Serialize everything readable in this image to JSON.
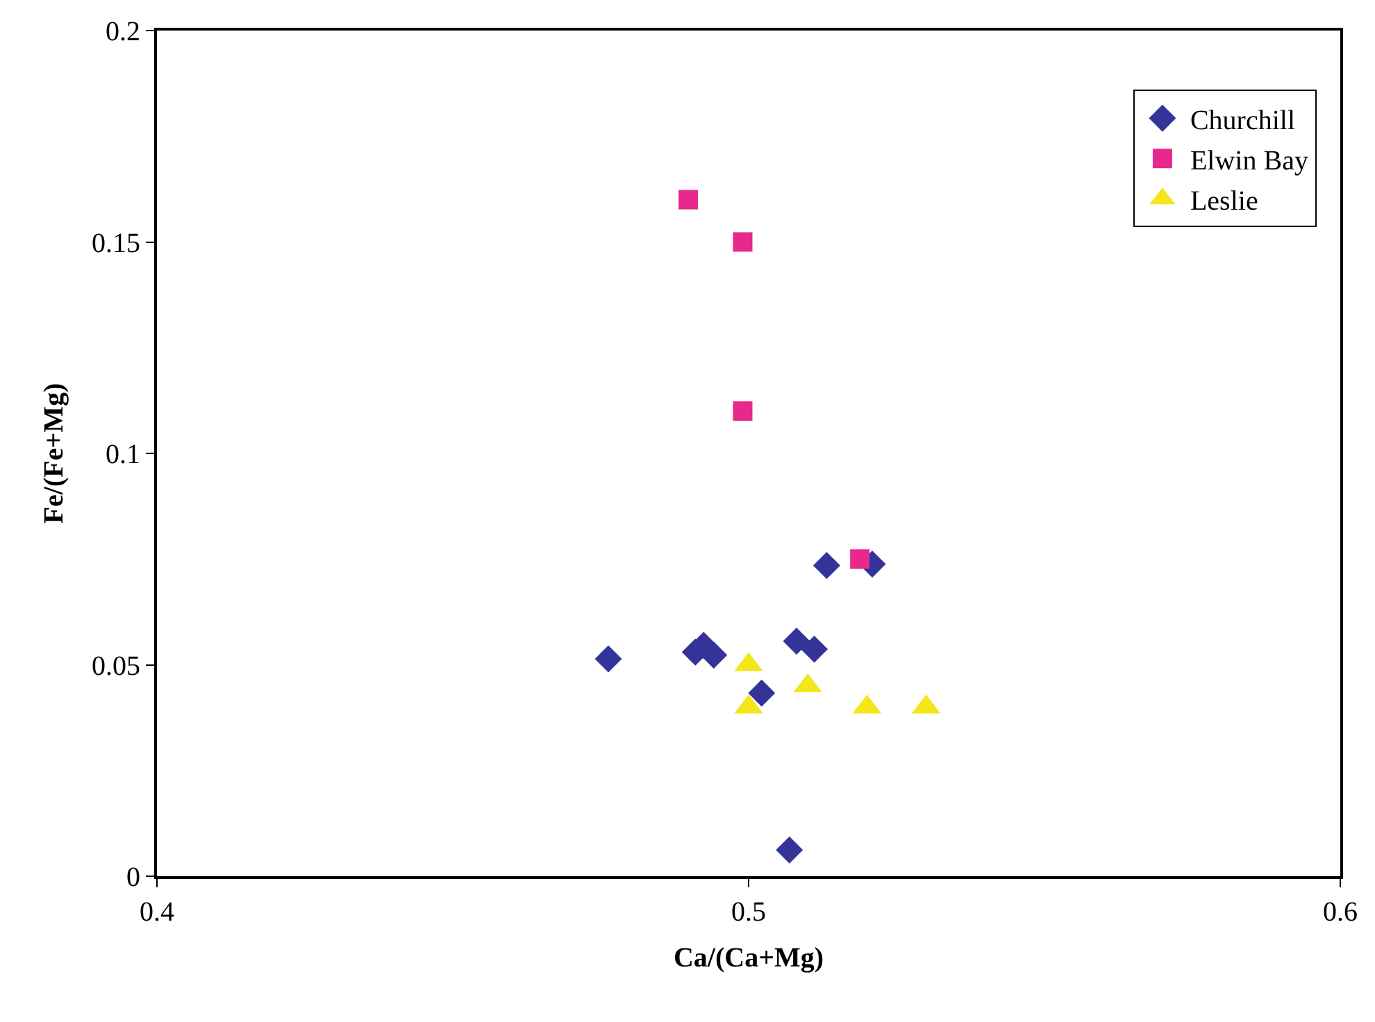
{
  "chart_data": {
    "type": "scatter",
    "xlabel": "Ca/(Ca+Mg)",
    "ylabel": "Fe/(Fe+Mg)",
    "xlim": [
      0.4,
      0.6
    ],
    "xticks": [
      0.4,
      0.5,
      0.6
    ],
    "ylim": [
      0,
      0.2
    ],
    "yticks": [
      0,
      0.05,
      0.1,
      0.15,
      0.2
    ],
    "legend": "top right",
    "series": [
      {
        "name": "Churchill",
        "color": "#333399",
        "marker": "diamond",
        "x": [
          0.4763,
          0.491,
          0.4924,
          0.4941,
          0.5081,
          0.5111,
          0.5022,
          0.5132,
          0.5209,
          0.5069
        ],
        "values": [
          0.0514,
          0.053,
          0.0546,
          0.0523,
          0.0556,
          0.0537,
          0.0433,
          0.0735,
          0.0738,
          0.0062
        ]
      },
      {
        "name": "Elwin Bay",
        "color": "#e8288c",
        "marker": "square",
        "x": [
          0.4898,
          0.499,
          0.499,
          0.5188
        ],
        "values": [
          0.16,
          0.15,
          0.11,
          0.075
        ]
      },
      {
        "name": "Leslie",
        "color": "#f5e51b",
        "marker": "triangle",
        "x": [
          0.5,
          0.51,
          0.5,
          0.52,
          0.53
        ],
        "values": [
          0.05,
          0.045,
          0.04,
          0.04,
          0.04
        ]
      }
    ]
  }
}
